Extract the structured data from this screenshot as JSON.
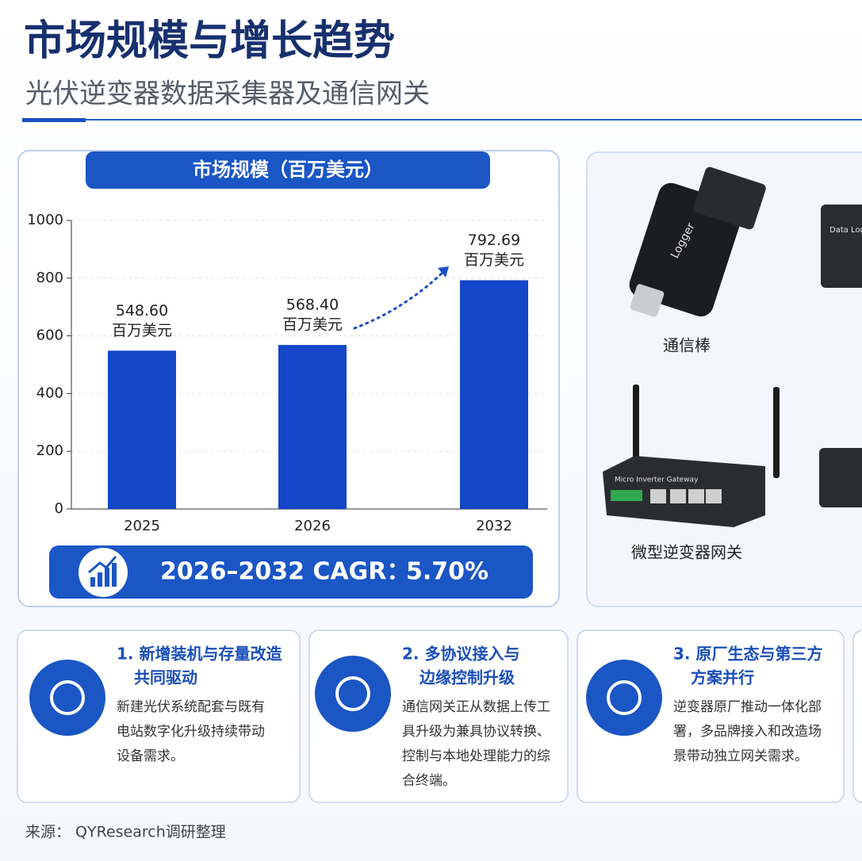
{
  "header": {
    "title": "市场规模与增长趋势",
    "subtitle": "光伏逆变器数据采集器及通信网关"
  },
  "chart_data": {
    "type": "bar",
    "title": "市场规模（百万美元）",
    "categories": [
      "2025",
      "2026",
      "2032"
    ],
    "values": [
      548.6,
      568.4,
      792.69
    ],
    "value_labels": [
      "548.60",
      "568.40",
      "792.69"
    ],
    "value_unit": "百万美元",
    "color": "#1446c8",
    "ylim": [
      0,
      1000
    ],
    "yticks": [
      0,
      200,
      400,
      600,
      800,
      1000
    ],
    "grid": true
  },
  "cagr": {
    "label": "2026–2032 CAGR：",
    "value": "5.70%"
  },
  "products": {
    "items": [
      {
        "label": "通信棒"
      },
      {
        "label": "微型逆变器网关"
      }
    ],
    "device_texts": [
      "Logger",
      "Data Logger",
      "Micro Inverter Gateway"
    ]
  },
  "cards": [
    {
      "title_lines": [
        "1. 新增装机与存量改造",
        "共同驱动"
      ],
      "body_lines": [
        "新建光伏系统配套与既有",
        "电站数字化升级持续带动",
        "设备需求。"
      ]
    },
    {
      "title_lines": [
        "2. 多协议接入与",
        "边缘控制升级"
      ],
      "body_lines": [
        "通信网关正从数据上传工",
        "具升级为兼具协议转换、",
        "控制与本地处理能力的综",
        "合终端。"
      ]
    },
    {
      "title_lines": [
        "3. 原厂生态与第三方",
        "方案并行"
      ],
      "body_lines": [
        "逆变器原厂推动一体化部",
        "署，多品牌接入和改造场",
        "景带动独立网关需求。"
      ]
    }
  ],
  "source": "来源：  QYResearch调研整理"
}
